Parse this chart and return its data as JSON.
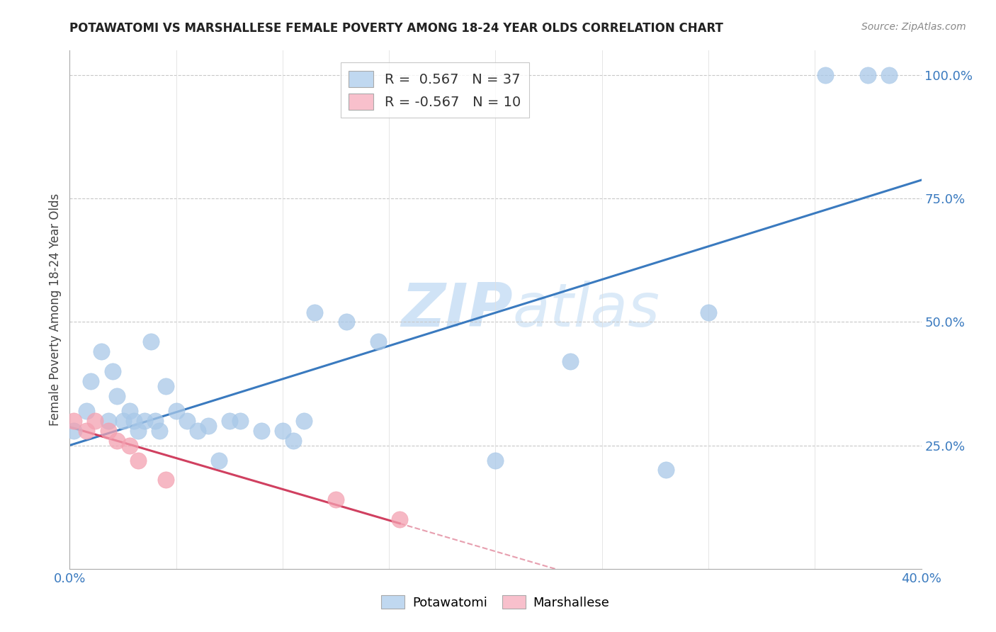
{
  "title": "POTAWATOMI VS MARSHALLESE FEMALE POVERTY AMONG 18-24 YEAR OLDS CORRELATION CHART",
  "source": "Source: ZipAtlas.com",
  "ylabel": "Female Poverty Among 18-24 Year Olds",
  "xlim": [
    0.0,
    0.4
  ],
  "ylim": [
    0.0,
    1.05
  ],
  "yticks_right": [
    0.25,
    0.5,
    0.75,
    1.0
  ],
  "yticklabels_right": [
    "25.0%",
    "50.0%",
    "75.0%",
    "100.0%"
  ],
  "potawatomi_color": "#a8c8e8",
  "marshallese_color": "#f4a0b0",
  "trendline_potawatomi_color": "#3a7abf",
  "trendline_marshallese_color": "#d04060",
  "legend_r_potawatomi": "0.567",
  "legend_n_potawatomi": "37",
  "legend_r_marshallese": "-0.567",
  "legend_n_marshallese": "10",
  "watermark_zip": "ZIP",
  "watermark_atlas": "atlas",
  "background_color": "#ffffff",
  "grid_color": "#c8c8c8",
  "potawatomi_x": [
    0.002,
    0.008,
    0.01,
    0.015,
    0.018,
    0.02,
    0.022,
    0.025,
    0.028,
    0.03,
    0.032,
    0.035,
    0.038,
    0.04,
    0.042,
    0.045,
    0.05,
    0.055,
    0.06,
    0.065,
    0.07,
    0.075,
    0.08,
    0.09,
    0.1,
    0.105,
    0.11,
    0.115,
    0.13,
    0.145,
    0.2,
    0.235,
    0.28,
    0.3,
    0.355,
    0.375,
    0.385
  ],
  "potawatomi_y": [
    0.28,
    0.32,
    0.38,
    0.44,
    0.3,
    0.4,
    0.35,
    0.3,
    0.32,
    0.3,
    0.28,
    0.3,
    0.46,
    0.3,
    0.28,
    0.37,
    0.32,
    0.3,
    0.28,
    0.29,
    0.22,
    0.3,
    0.3,
    0.28,
    0.28,
    0.26,
    0.3,
    0.52,
    0.5,
    0.46,
    0.22,
    0.42,
    0.2,
    0.52,
    1.0,
    1.0,
    1.0
  ],
  "marshallese_x": [
    0.002,
    0.008,
    0.012,
    0.018,
    0.022,
    0.028,
    0.032,
    0.045,
    0.125,
    0.155
  ],
  "marshallese_y": [
    0.3,
    0.28,
    0.3,
    0.28,
    0.26,
    0.25,
    0.22,
    0.18,
    0.14,
    0.1
  ]
}
